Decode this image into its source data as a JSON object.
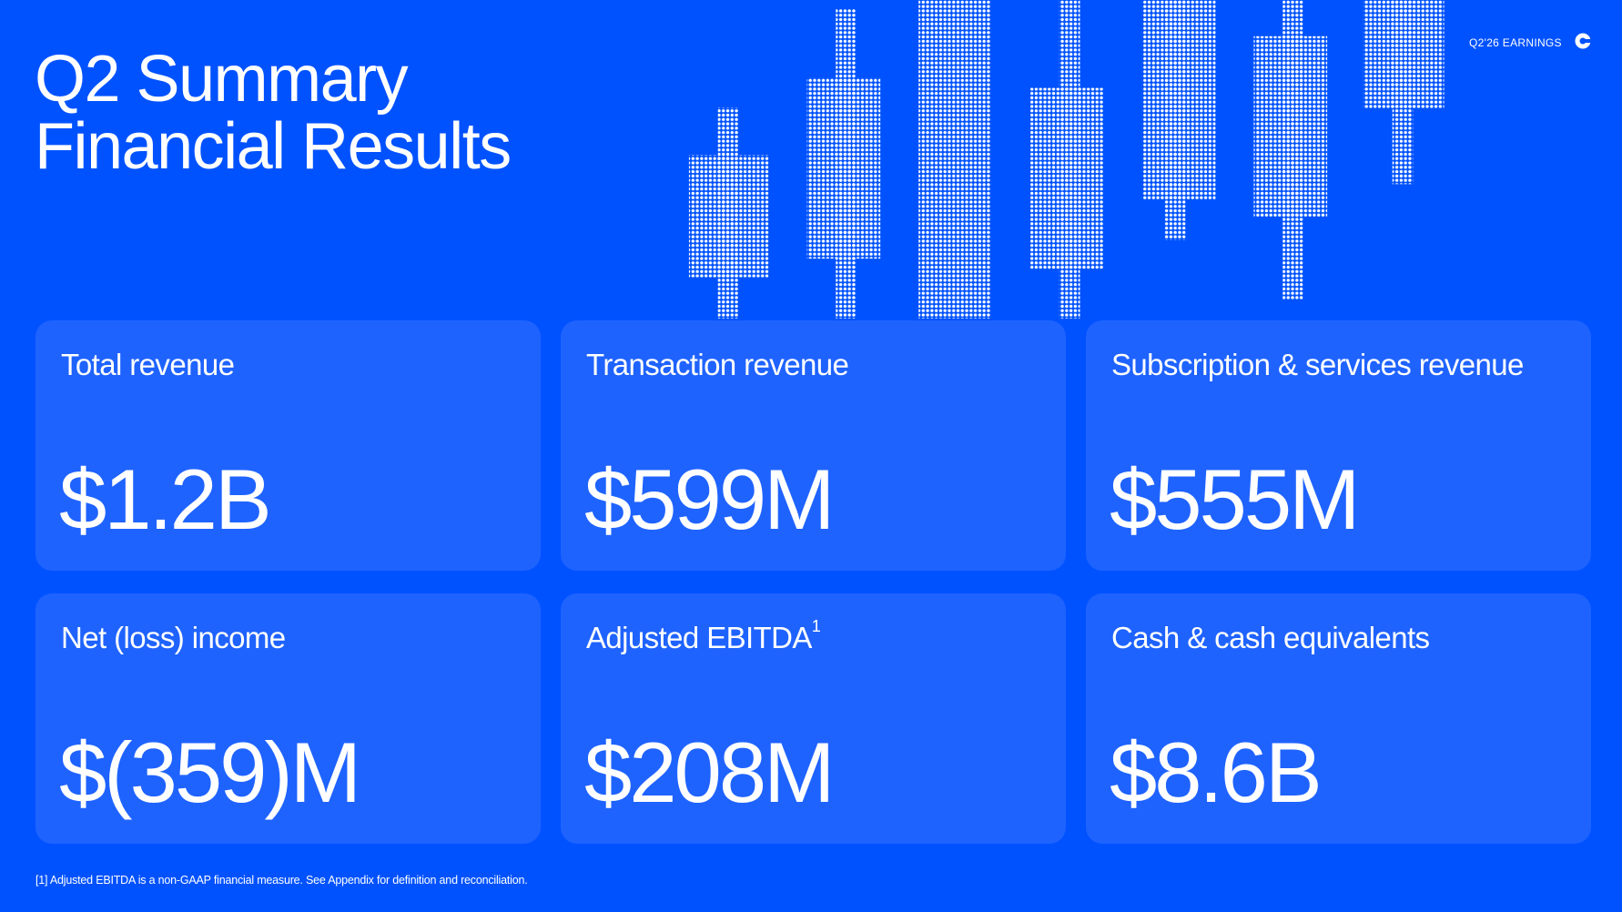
{
  "header": {
    "title_lines": [
      "Q2 Summary",
      "Financial Results"
    ],
    "tag": "Q2'26 EARNINGS"
  },
  "cards": [
    {
      "label": "Total revenue",
      "value": "$1.2B"
    },
    {
      "label": "Transaction revenue",
      "value": "$599M"
    },
    {
      "label": "Subscription & services revenue",
      "value": "$555M"
    },
    {
      "label": "Net (loss) income",
      "value": "$(359)M"
    },
    {
      "label": "Adjusted EBITDA",
      "footnote_ref": "1",
      "value": "$208M"
    },
    {
      "label": "Cash & cash equivalents",
      "value": "$8.6B"
    }
  ],
  "footnote": "[1] Adjusted EBITDA is a non-GAAP financial measure. See Appendix for definition and reconciliation."
}
